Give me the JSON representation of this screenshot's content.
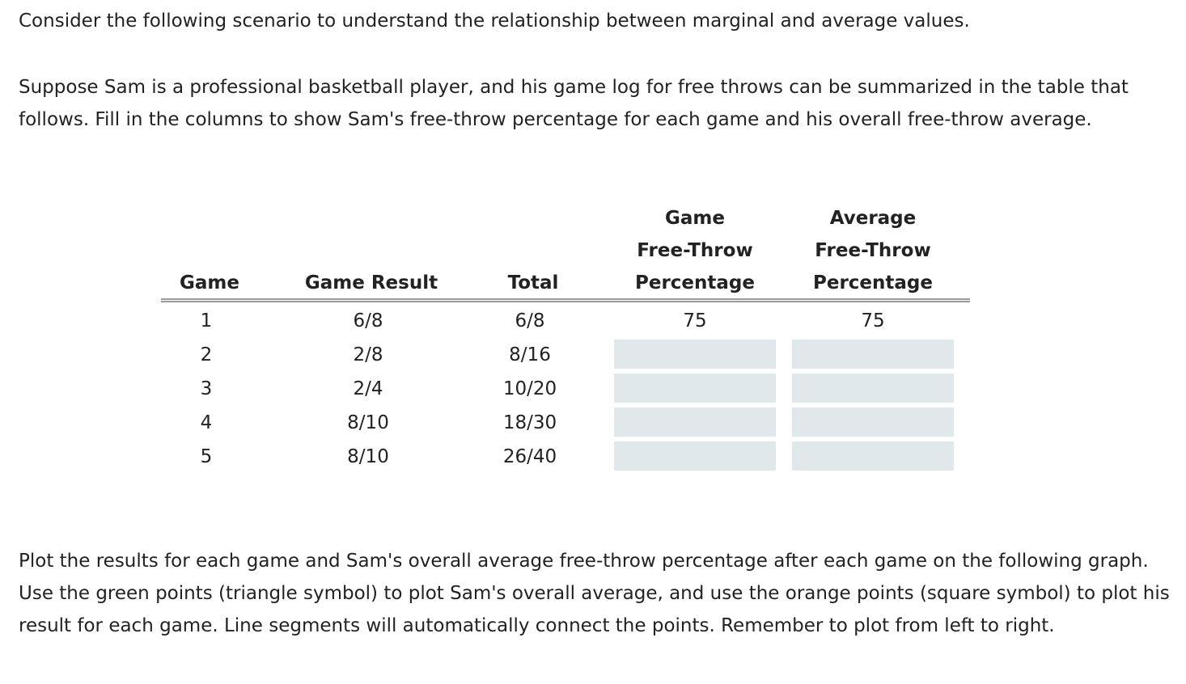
{
  "intro": "Consider the following scenario to understand the relationship between marginal and average values.",
  "scenario": "Suppose Sam is a professional basketball player, and his game log for free throws can be summarized in the table that follows. Fill in the columns to show Sam's free-throw percentage for each game and his overall free-throw average.",
  "table": {
    "headers": {
      "game": "Game",
      "result": "Game Result",
      "total": "Total",
      "game_ftp": [
        "Game",
        "Free-Throw",
        "Percentage"
      ],
      "avg_ftp": [
        "Average",
        "Free-Throw",
        "Percentage"
      ]
    },
    "rows": [
      {
        "game": "1",
        "result": "6/8",
        "total": "6/8",
        "game_ftp": "75",
        "avg_ftp": "75"
      },
      {
        "game": "2",
        "result": "2/8",
        "total": "8/16",
        "game_ftp": "",
        "avg_ftp": ""
      },
      {
        "game": "3",
        "result": "2/4",
        "total": "10/20",
        "game_ftp": "",
        "avg_ftp": ""
      },
      {
        "game": "4",
        "result": "8/10",
        "total": "18/30",
        "game_ftp": "",
        "avg_ftp": ""
      },
      {
        "game": "5",
        "result": "8/10",
        "total": "26/40",
        "game_ftp": "",
        "avg_ftp": ""
      }
    ]
  },
  "instructions": "Plot the results for each game and Sam's overall average free-throw percentage after each game on the following graph. Use the green points (triangle symbol) to plot Sam's overall average, and use the orange points (square symbol) to plot his result for each game. Line segments will automatically connect the points. Remember to plot from left to right.",
  "colors": {
    "input_background": "#e1e8eb",
    "text": "#222222",
    "rule": "#999999"
  }
}
